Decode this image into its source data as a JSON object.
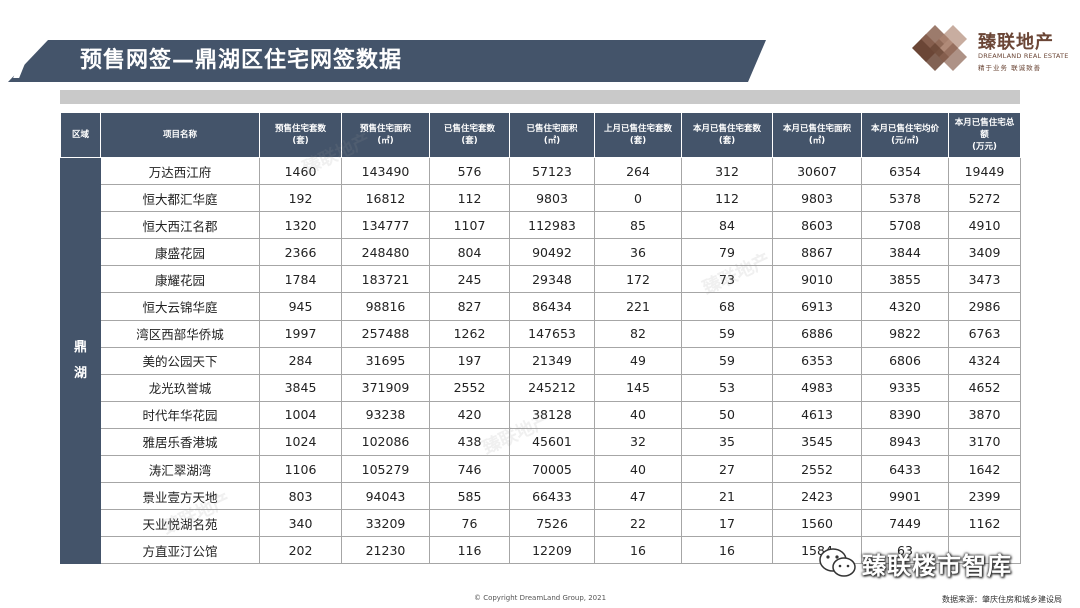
{
  "title": "预售网签—鼎湖区住宅网签数据",
  "logo": {
    "name": "臻联地产",
    "english": "DREAMLAND REAL ESTATE",
    "slogan": "精于业务 联诚致善",
    "colors": {
      "dark": "#6b4636",
      "light": "#b08a78"
    }
  },
  "table": {
    "headers": [
      "区域",
      "项目名称",
      "预售住宅套数\n(套)",
      "预售住宅面积\n(㎡)",
      "已售住宅套数\n(套)",
      "已售住宅面积\n(㎡)",
      "上月已售住宅套数\n(套)",
      "本月已售住宅套数\n(套)",
      "本月已售住宅面积\n(㎡)",
      "本月已售住宅均价\n(元/㎡)",
      "本月已售住宅总额\n(万元)"
    ],
    "region_label": [
      "鼎",
      "湖"
    ],
    "rows": [
      [
        "万达西江府",
        "1460",
        "143490",
        "576",
        "57123",
        "264",
        "312",
        "30607",
        "6354",
        "19449"
      ],
      [
        "恒大都汇华庭",
        "192",
        "16812",
        "112",
        "9803",
        "0",
        "112",
        "9803",
        "5378",
        "5272"
      ],
      [
        "恒大西江名郡",
        "1320",
        "134777",
        "1107",
        "112983",
        "85",
        "84",
        "8603",
        "5708",
        "4910"
      ],
      [
        "康盛花园",
        "2366",
        "248480",
        "804",
        "90492",
        "36",
        "79",
        "8867",
        "3844",
        "3409"
      ],
      [
        "康耀花园",
        "1784",
        "183721",
        "245",
        "29348",
        "172",
        "73",
        "9010",
        "3855",
        "3473"
      ],
      [
        "恒大云锦华庭",
        "945",
        "98816",
        "827",
        "86434",
        "221",
        "68",
        "6913",
        "4320",
        "2986"
      ],
      [
        "湾区西部华侨城",
        "1997",
        "257488",
        "1262",
        "147653",
        "82",
        "59",
        "6886",
        "9822",
        "6763"
      ],
      [
        "美的公园天下",
        "284",
        "31695",
        "197",
        "21349",
        "49",
        "59",
        "6353",
        "6806",
        "4324"
      ],
      [
        "龙光玖誉城",
        "3845",
        "371909",
        "2552",
        "245212",
        "145",
        "53",
        "4983",
        "9335",
        "4652"
      ],
      [
        "时代年华花园",
        "1004",
        "93238",
        "420",
        "38128",
        "40",
        "50",
        "4613",
        "8390",
        "3870"
      ],
      [
        "雅居乐香港城",
        "1024",
        "102086",
        "438",
        "45601",
        "32",
        "35",
        "3545",
        "8943",
        "3170"
      ],
      [
        "涛汇翠湖湾",
        "1106",
        "105279",
        "746",
        "70005",
        "40",
        "27",
        "2552",
        "6433",
        "1642"
      ],
      [
        "景业壹方天地",
        "803",
        "94043",
        "585",
        "66433",
        "47",
        "21",
        "2423",
        "9901",
        "2399"
      ],
      [
        "天业悦湖名苑",
        "340",
        "33209",
        "76",
        "7526",
        "22",
        "17",
        "1560",
        "7449",
        "1162"
      ],
      [
        "方直亚汀公馆",
        "202",
        "21230",
        "116",
        "12209",
        "16",
        "16",
        "1584",
        "63",
        ""
      ]
    ]
  },
  "footer": {
    "copyright": "© Copyright  DreamLand  Group,  2021",
    "source": "数据来源：肇庆住房和城乡建设局"
  },
  "wechat_badge": "臻联楼市智库",
  "colors": {
    "header_bg": "#44546a",
    "grey_band": "#c9c9c9",
    "border": "#a6a6a6"
  }
}
